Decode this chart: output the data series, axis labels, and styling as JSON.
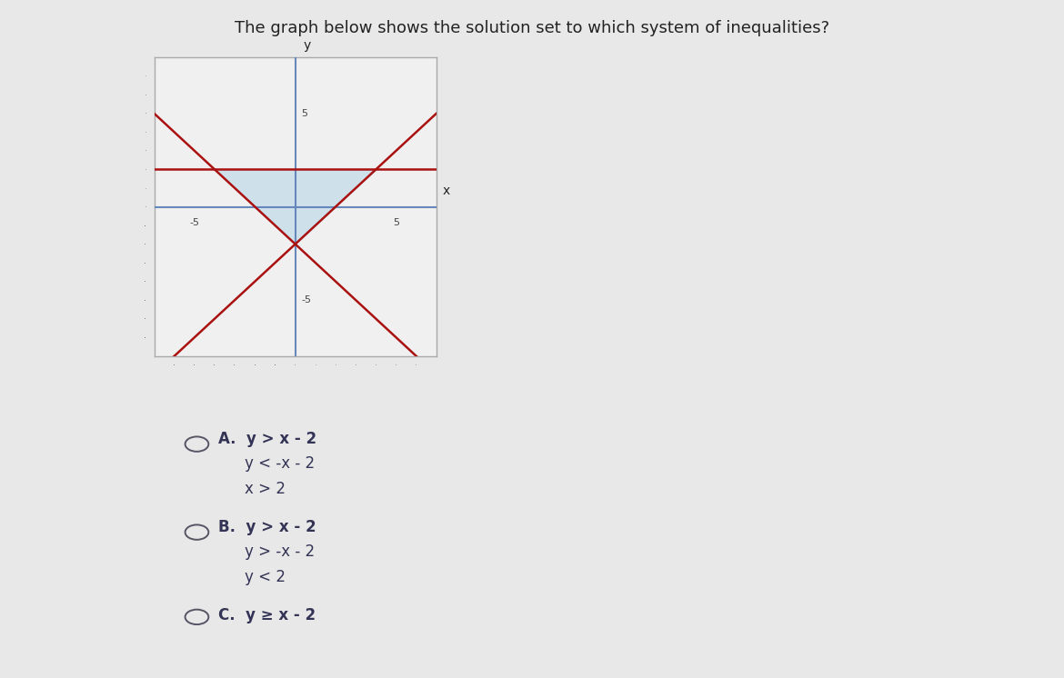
{
  "title": "The graph below shows the solution set to which system of inequalities?",
  "title_fontsize": 13,
  "title_color": "#222222",
  "xlim": [
    -7,
    7
  ],
  "ylim": [
    -8,
    8
  ],
  "background_color": "#e8e8e8",
  "graph_bg": "#f0f0f0",
  "graph_border_color": "#aaaaaa",
  "line_color": "#aa1111",
  "axis_color": "#6688bb",
  "shading_color": "#b8d8e8",
  "shading_alpha": 0.6,
  "y_horiz": 2,
  "line1_slope": 1,
  "line1_intercept": -2,
  "line2_slope": -1,
  "line2_intercept": -2,
  "answer_color": "#333355",
  "answer_fontsize": 12,
  "radio_color": "#555566",
  "tick_color": "#444444",
  "label_fontsize": 8,
  "axis_label_fontsize": 10
}
